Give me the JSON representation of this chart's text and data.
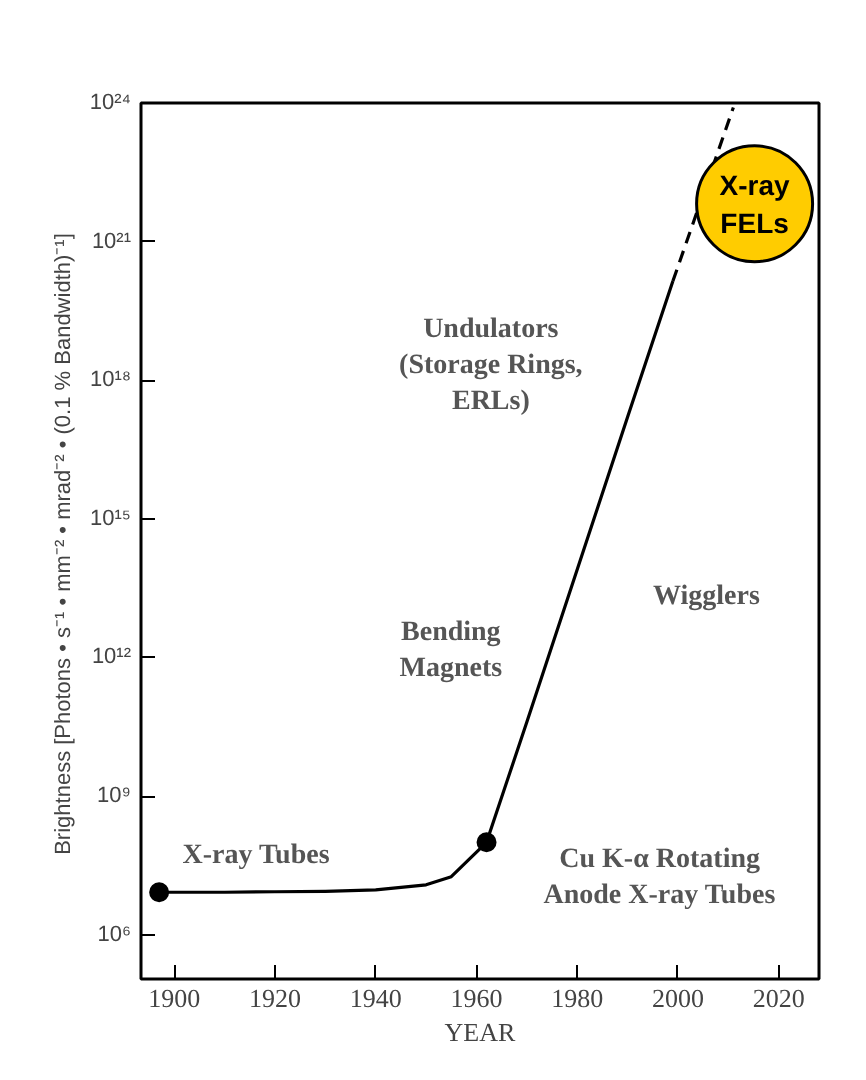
{
  "chart_data": {
    "type": "line",
    "xlabel": "YEAR",
    "ylabel": "Brightness  [Photons • s⁻¹ • mm⁻² • mrad⁻² • (0.1 % Bandwidth)⁻¹]",
    "log": "y",
    "grid": false,
    "xlim": [
      1893.4,
      2028
    ],
    "xticks": [
      1900,
      1920,
      1940,
      1960,
      1980,
      2000,
      2020
    ],
    "ylim": [
      110000.0,
      1e+24
    ],
    "yticks": [
      {
        "value": 1000000.0,
        "label": "10⁶"
      },
      {
        "value": 1000000000.0,
        "label": "10⁹"
      },
      {
        "value": 1000000000000.0,
        "label": "10¹²"
      },
      {
        "value": 1000000000000000.0,
        "label": "10¹⁵"
      },
      {
        "value": 1e+18,
        "label": "10¹⁸"
      },
      {
        "value": 1e+21,
        "label": "10²¹"
      },
      {
        "value": 1e+24,
        "label": "10²⁴"
      }
    ],
    "series": [
      {
        "color": "#000000",
        "line_style": "solid",
        "marker": "none",
        "x": [
          1897,
          1910,
          1920,
          1930,
          1940,
          1950,
          1955,
          1962,
          1970,
          1980,
          1990,
          1999
        ],
        "values": [
          8300000.0,
          8300000.0,
          8500000.0,
          8700000.0,
          9300000.0,
          12000000.0,
          18000000.0,
          100000000.0,
          40000000000.0,
          80000000000000.0,
          1.6e+17,
          1.4e+20
        ]
      },
      {
        "color": "#000000",
        "line_style": "dashed",
        "marker": "none",
        "x": [
          1999,
          2011
        ],
        "values": [
          1.4e+20,
          8e+23
        ]
      },
      {
        "type": "scatter",
        "color": "#000000",
        "marker": "circle",
        "x": [
          1897,
          1962
        ],
        "values": [
          8300000.0,
          100000000.0
        ]
      }
    ],
    "annotations": [
      "Undulators\n(Storage Rings,\nERLs)",
      "Wigglers",
      "Bending\nMagnets",
      "X-ray Tubes",
      "Cu K-α Rotating\nAnode X-ray Tubes",
      "X-ray FELs"
    ]
  }
}
